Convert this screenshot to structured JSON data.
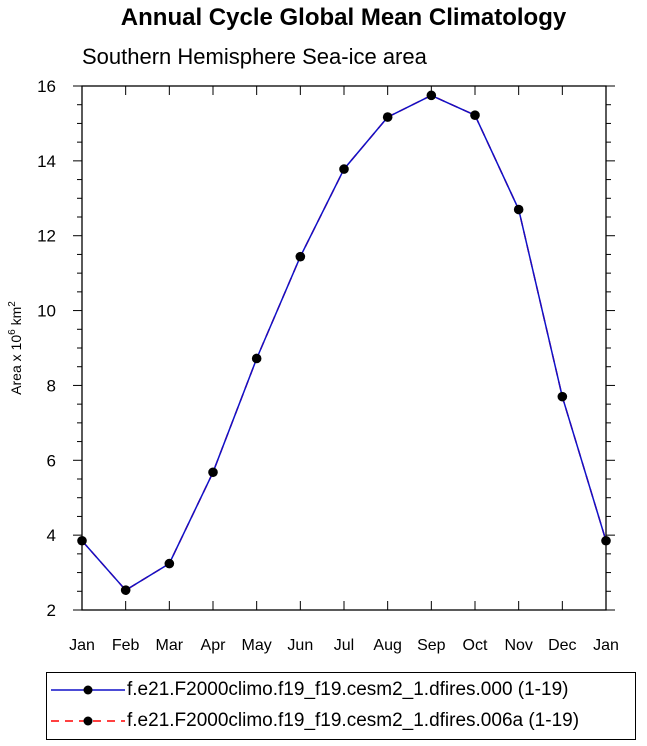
{
  "title": "Annual Cycle Global Mean Climatology",
  "subtitle": "Southern Hemisphere Sea-ice area",
  "colors": {
    "series1": "#1010c8",
    "series2": "#ff0000",
    "marker": "#000000"
  },
  "chart_data": {
    "type": "line",
    "categories": [
      "Jan",
      "Feb",
      "Mar",
      "Apr",
      "May",
      "Jun",
      "Jul",
      "Aug",
      "Sep",
      "Oct",
      "Nov",
      "Dec",
      "Jan"
    ],
    "ylabel": {
      "base": "Area x 10",
      "exp1": "6",
      "mid": " km",
      "exp2": "2"
    },
    "ylim": [
      2,
      16
    ],
    "yticks": [
      2,
      4,
      6,
      8,
      10,
      12,
      14,
      16
    ],
    "grid": false,
    "legend_position": "bottom",
    "series": [
      {
        "name": "f.e21.F2000climo.f19_f19.cesm2_1.dfires.000 (1-19)",
        "color": "#1010c8",
        "style": "solid",
        "values": [
          3.85,
          2.53,
          3.24,
          5.68,
          8.72,
          11.44,
          13.78,
          15.17,
          15.75,
          15.22,
          12.7,
          7.7,
          3.85
        ]
      },
      {
        "name": "f.e21.F2000climo.f19_f19.cesm2_1.dfires.006a (1-19)",
        "color": "#ff0000",
        "style": "dashed",
        "values": [
          3.85,
          2.53,
          3.24,
          5.68,
          8.72,
          11.44,
          13.78,
          15.17,
          15.75,
          15.22,
          12.7,
          7.7,
          3.85
        ]
      }
    ]
  }
}
